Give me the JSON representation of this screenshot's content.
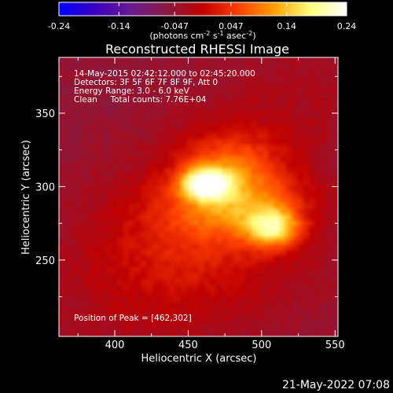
{
  "chart_data": {
    "type": "heatmap",
    "title": "Reconstructed RHESSI Image",
    "xlabel": "Heliocentric X (arcsec)",
    "ylabel": "Heliocentric Y (arcsec)",
    "xlim": [
      362,
      552
    ],
    "ylim": [
      198,
      388
    ],
    "x_ticks": [
      400,
      450,
      500,
      550
    ],
    "y_ticks": [
      250,
      300,
      350
    ],
    "colorbar": {
      "range": [
        -0.24,
        0.24
      ],
      "ticks": [
        "-0.24",
        "-0.14",
        "-0.047",
        "0.047",
        "0.14",
        "0.24"
      ],
      "tick_values": [
        -0.24,
        -0.14,
        -0.047,
        0.047,
        0.14,
        0.24
      ],
      "unit_text": "(photons cm",
      "unit_exp1": "-2",
      "unit_mid": " s",
      "unit_exp2": "-1",
      "unit_mid2": " asec",
      "unit_exp3": "-2",
      "unit_end": ")",
      "colors": [
        "#0000ff",
        "#3a00c0",
        "#6a1a90",
        "#8a1a40",
        "#c00000",
        "#ff4000",
        "#ffa000",
        "#ffff80",
        "#ffffff"
      ]
    },
    "annotations": [
      "14-May-2015 02:42:12.000 to 02:45:20.000",
      "Detectors: 3F 5F 6F 7F 8F 9F, Att 0",
      "Energy Range: 3.0 - 6.0 keV",
      "Clean     Total counts: 7.76E+04"
    ],
    "peak_label": "Position of Peak = [462,302]",
    "peak": [
      462,
      302
    ],
    "sources": [
      {
        "x": 462,
        "y": 302,
        "sx": 11,
        "sy": 7,
        "amp": 0.24
      },
      {
        "x": 508,
        "y": 272,
        "sx": 12,
        "sy": 9,
        "amp": 0.17
      },
      {
        "x": 485,
        "y": 288,
        "sx": 30,
        "sy": 16,
        "amp": 0.11
      },
      {
        "x": 478,
        "y": 318,
        "sx": 22,
        "sy": 14,
        "amp": 0.07
      },
      {
        "x": 460,
        "y": 255,
        "sx": 55,
        "sy": 40,
        "amp": 0.05
      }
    ],
    "background": -0.05
  },
  "footer": {
    "date_label": "21-May-2022 07:08"
  }
}
